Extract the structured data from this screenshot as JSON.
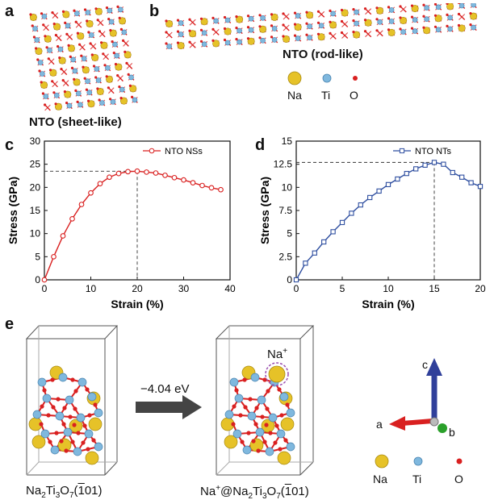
{
  "panels": {
    "a": {
      "letter": "a",
      "caption": "NTO (sheet-like)"
    },
    "b": {
      "letter": "b",
      "caption": "NTO (rod-like)"
    },
    "c": {
      "letter": "c"
    },
    "d": {
      "letter": "d"
    },
    "e": {
      "letter": "e"
    }
  },
  "atom_legend": {
    "na": {
      "label": "Na",
      "color": "#e6c228"
    },
    "ti": {
      "label": "Ti",
      "color": "#7fb8de"
    },
    "o": {
      "label": "O",
      "color": "#d92020"
    }
  },
  "panel_e": {
    "energy_label": "−4.04 eV",
    "ion_label": "Na",
    "ion_charge": "+",
    "left_formula": {
      "p1": "Na",
      "s1": "2",
      "p2": "Ti",
      "s2": "3",
      "p3": "O",
      "s3": "7",
      "p4": "(",
      "bar": "1",
      "p5": "01)"
    },
    "right_formula": {
      "p0": "Na",
      "sup": "+",
      "p1": "@Na",
      "s1": "2",
      "p2": "Ti",
      "s2": "3",
      "p3": "O",
      "s3": "7",
      "p4": "(",
      "bar": "1",
      "p5": "01)"
    },
    "axes": {
      "a": "a",
      "b": "b",
      "c": "c"
    }
  },
  "chart_data": [
    {
      "type": "line",
      "panel": "c",
      "series": [
        {
          "name": "NTO NSs",
          "color": "#d92020",
          "x": [
            0,
            2,
            4,
            6,
            8,
            10,
            12,
            14,
            16,
            18,
            20,
            22,
            24,
            26,
            28,
            30,
            32,
            34,
            36,
            38
          ],
          "y": [
            0,
            5.0,
            9.5,
            13.2,
            16.3,
            18.8,
            20.8,
            22.2,
            23.0,
            23.4,
            23.5,
            23.3,
            23.1,
            22.6,
            22.1,
            21.6,
            21.0,
            20.4,
            19.9,
            19.5
          ]
        }
      ],
      "xlabel": "Strain (%)",
      "ylabel": "Stress (GPa)",
      "xlim": [
        0,
        40
      ],
      "ylim": [
        0,
        30
      ],
      "xticks": [
        0,
        10,
        20,
        30,
        40
      ],
      "yticks": [
        0,
        5,
        10,
        15,
        20,
        25,
        30
      ],
      "peak": {
        "x": 20,
        "y": 23.5
      }
    },
    {
      "type": "line",
      "panel": "d",
      "series": [
        {
          "name": "NTO NTs",
          "color": "#2f4fa0",
          "x": [
            0,
            1,
            2,
            3,
            4,
            5,
            6,
            7,
            8,
            9,
            10,
            11,
            12,
            13,
            14,
            15,
            16,
            17,
            18,
            19,
            20
          ],
          "y": [
            0,
            1.8,
            2.9,
            4.1,
            5.2,
            6.2,
            7.2,
            8.1,
            8.9,
            9.6,
            10.3,
            10.9,
            11.5,
            12.0,
            12.4,
            12.7,
            12.5,
            11.6,
            11.1,
            10.5,
            10.1
          ]
        }
      ],
      "xlabel": "Strain (%)",
      "ylabel": "Stress (GPa)",
      "xlim": [
        0,
        20
      ],
      "ylim": [
        0,
        15
      ],
      "xticks": [
        0,
        5,
        10,
        15,
        20
      ],
      "yticks": [
        0,
        2.5,
        5,
        7.5,
        10,
        12.5,
        15
      ],
      "ytick_labels": [
        "0",
        "2.5",
        "5",
        "7.5",
        "10",
        "12.5",
        "15"
      ],
      "peak": {
        "x": 15,
        "y": 12.7
      }
    }
  ]
}
